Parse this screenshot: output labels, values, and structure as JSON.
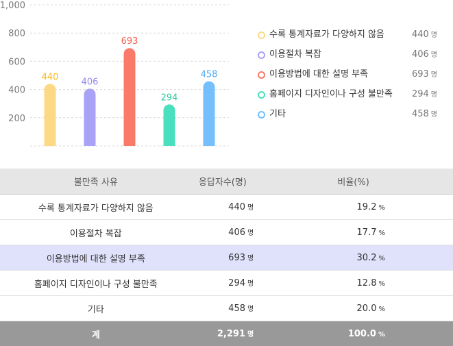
{
  "chart_data": {
    "type": "bar",
    "categories": [
      "수록 통계자료가 다양하지 않음",
      "이용절차 복잡",
      "이용방법에 대한 설명 부족",
      "홈페이지 디자인이나 구성 불만족",
      "기타"
    ],
    "values": [
      440,
      406,
      693,
      294,
      458
    ],
    "colors": [
      "#fdd985",
      "#a9a2f6",
      "#fa7a6a",
      "#4ae0bd",
      "#74bffc"
    ],
    "value_label_colors": [
      "#f5b919",
      "#9288ee",
      "#f2614e",
      "#2cc99c",
      "#4aa8f2"
    ],
    "yticks": [
      "1,000",
      "800",
      "600",
      "400",
      "200"
    ],
    "ytick_values": [
      1000,
      800,
      600,
      400,
      200
    ],
    "ylim": [
      0,
      1000
    ],
    "grid": true,
    "legend_position": "right",
    "unit": "명"
  },
  "table": {
    "headers": [
      "불만족 사유",
      "응답자수(명)",
      "비율(%)"
    ],
    "rows": [
      {
        "name": "수록 통계자료가 다양하지 않음",
        "count": "440",
        "pct": "19.2",
        "highlight": false
      },
      {
        "name": "이용절차 복잡",
        "count": "406",
        "pct": "17.7",
        "highlight": false
      },
      {
        "name": "이용방법에 대한 설명 부족",
        "count": "693",
        "pct": "30.2",
        "highlight": true
      },
      {
        "name": "홈페이지 디자인이나 구성 불만족",
        "count": "294",
        "pct": "12.8",
        "highlight": false
      },
      {
        "name": "기타",
        "count": "458",
        "pct": "20.0",
        "highlight": false
      }
    ],
    "total": {
      "name": "계",
      "count": "2,291",
      "pct": "100.0"
    },
    "count_unit": "명",
    "pct_unit": "%"
  }
}
